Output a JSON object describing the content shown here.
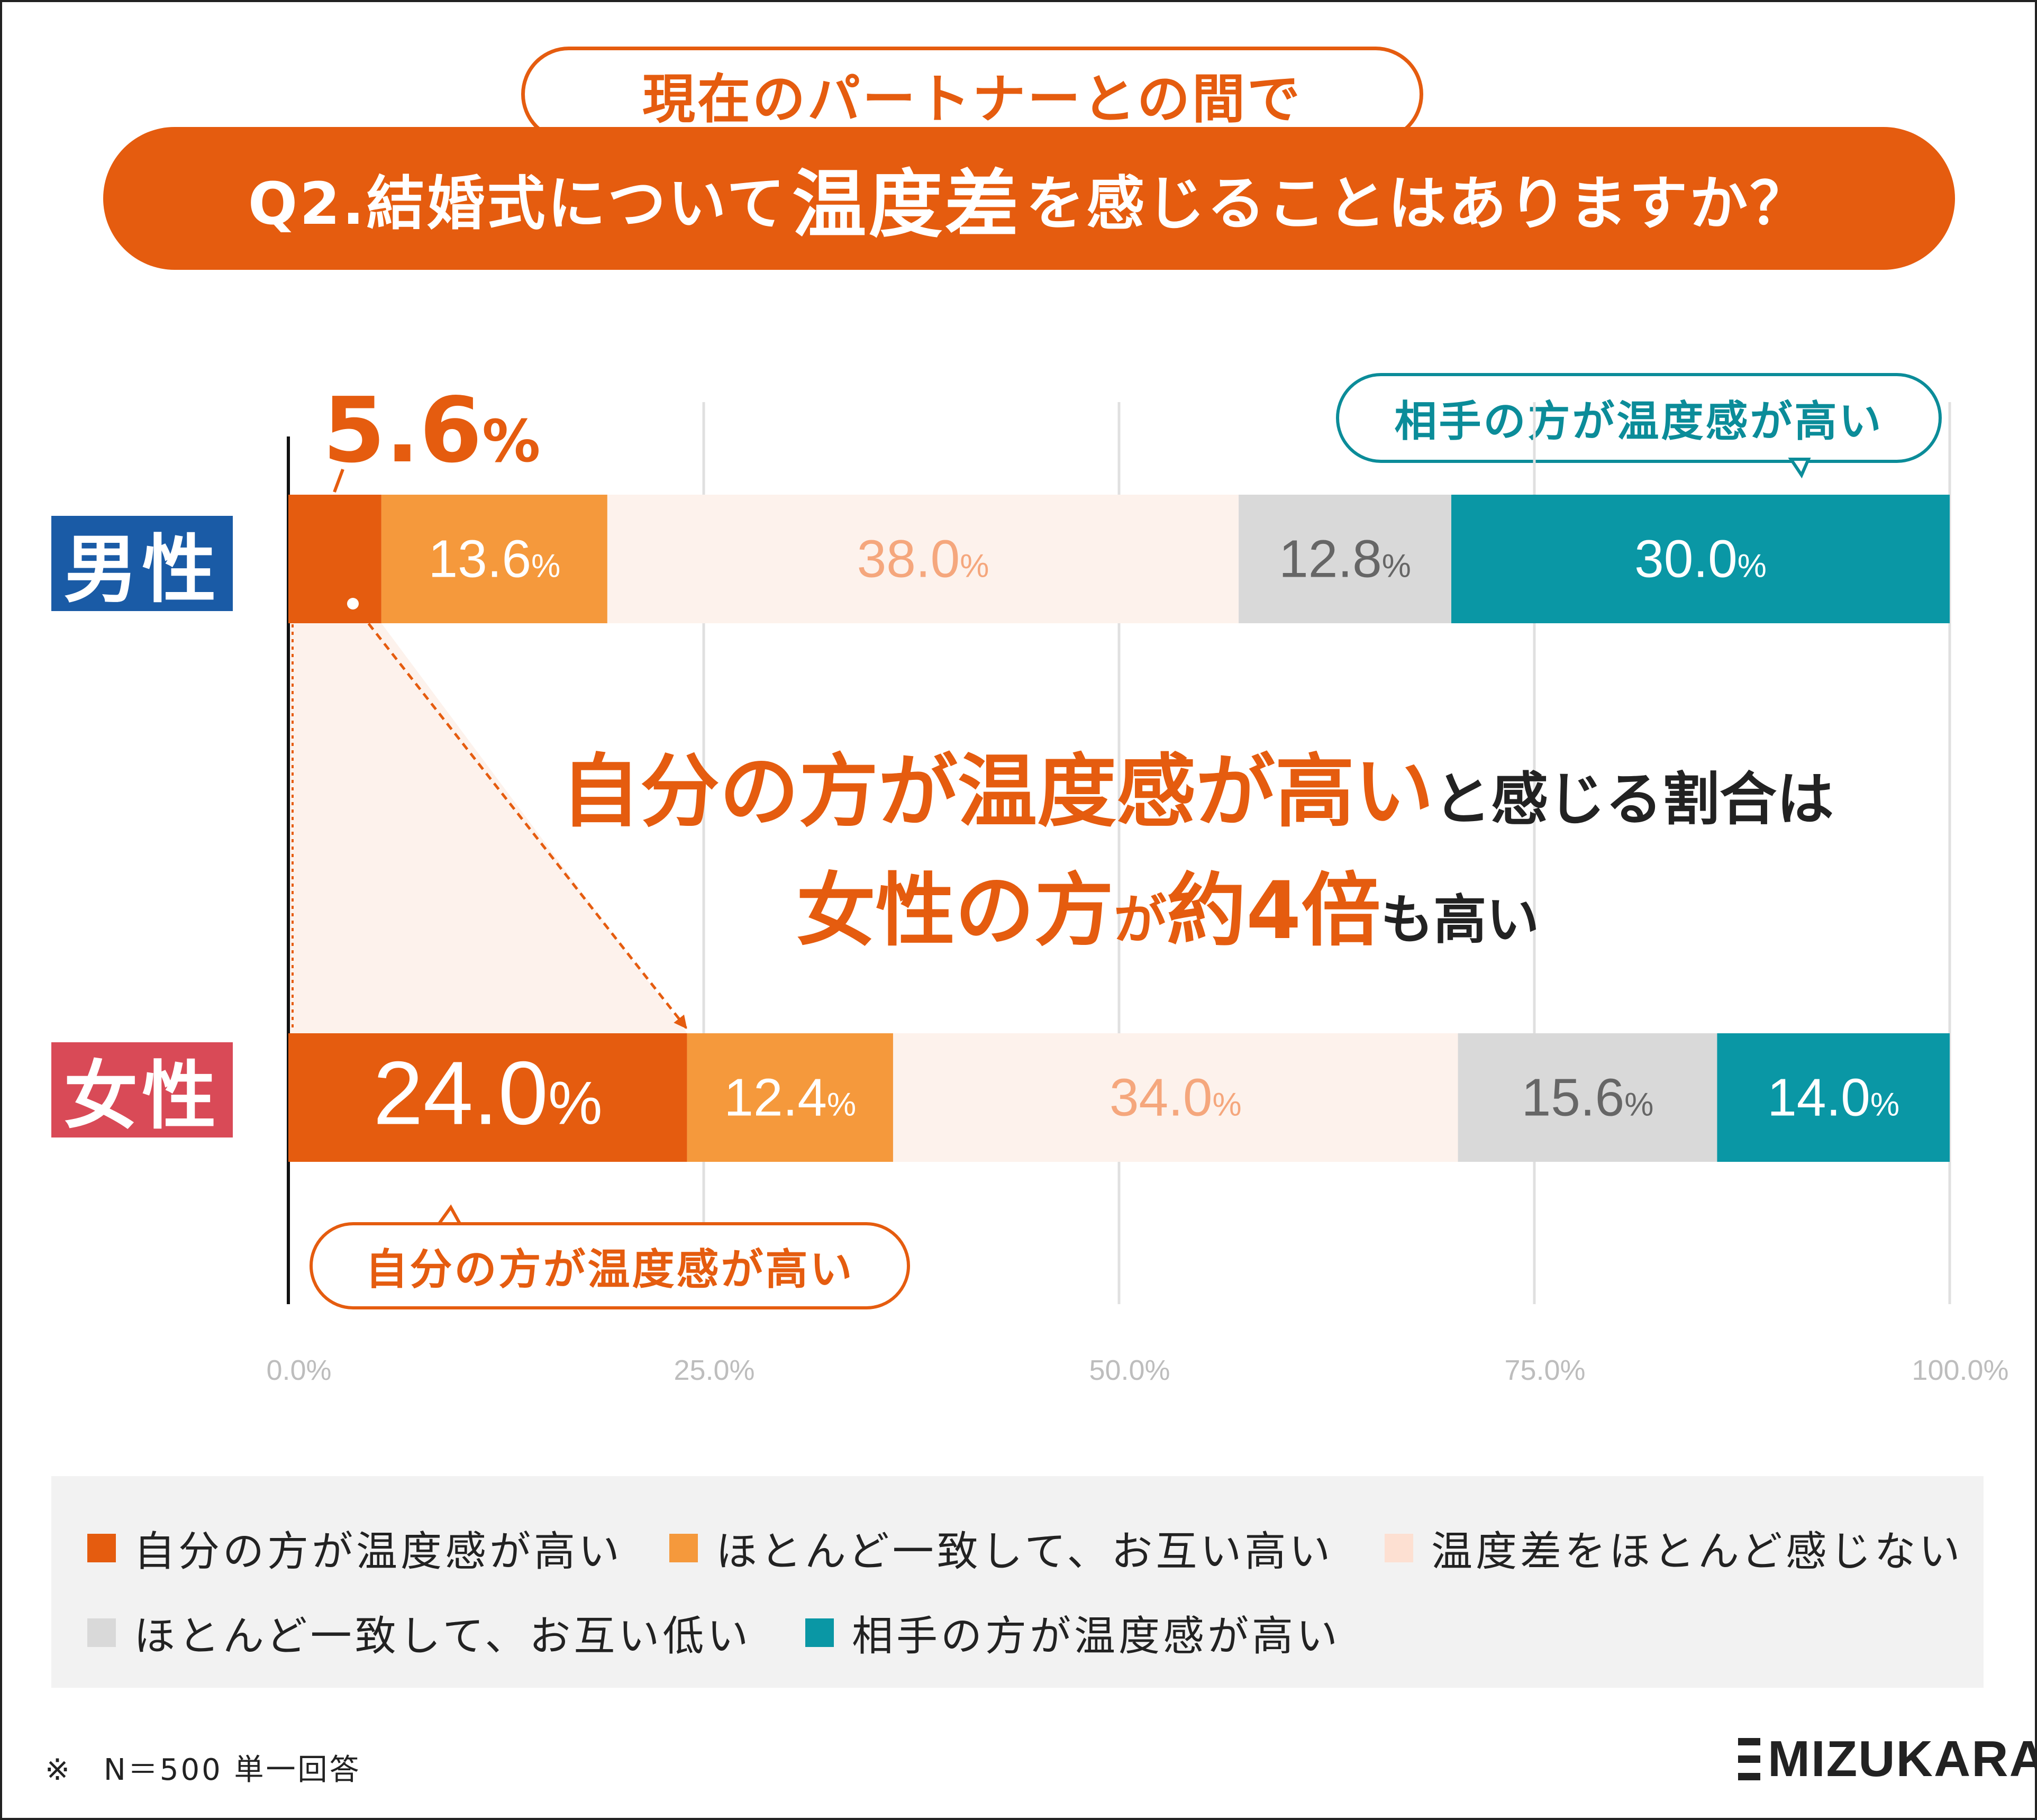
{
  "header": {
    "subtitle": "現在のパートナーとの間で",
    "question_prefix": "Q2.結婚式について",
    "question_emphasis": "温度差",
    "question_suffix": "を感じることはありますか？"
  },
  "callouts": {
    "partner_higher": "相手の方が温度感が高い",
    "self_higher": "自分の方が温度感が高い"
  },
  "gender_labels": {
    "male": "男性",
    "female": "女性"
  },
  "highlight_label": {
    "value": "5.6",
    "unit": "%"
  },
  "headline": {
    "line1_emphasis": "自分の方が温度感が高い",
    "line1_rest": "と感じる割合は",
    "line2_part1": "女性の方",
    "line2_part2": "が",
    "line2_part3": "約4倍",
    "line2_part4": "も高い"
  },
  "chart_data": {
    "type": "bar",
    "orientation": "horizontal",
    "stacked": true,
    "categories": [
      "男性",
      "女性"
    ],
    "xlim": [
      0,
      100
    ],
    "x_ticks": [
      "0.0%",
      "25.0%",
      "50.0%",
      "75.0%",
      "100.0%"
    ],
    "grid": true,
    "legend_position": "bottom",
    "series": [
      {
        "name": "自分の方が温度感が高い",
        "values": [
          5.6,
          24.0
        ],
        "color": "#e55c0f",
        "text_color": "#ffffff"
      },
      {
        "name": "ほとんど一致して、お互い高い",
        "values": [
          13.6,
          12.4
        ],
        "color": "#f5993c",
        "text_color": "#ffffff"
      },
      {
        "name": "温度差をほとんど感じない",
        "values": [
          38.0,
          34.0
        ],
        "color": "#fdf2ec",
        "text_color": "#f5a77d"
      },
      {
        "name": "ほとんど一致して、お互い低い",
        "values": [
          12.8,
          15.6
        ],
        "color": "#d9d9d9",
        "text_color": "#666666"
      },
      {
        "name": "相手の方が温度感が高い",
        "values": [
          30.0,
          14.0
        ],
        "color": "#0a97a5",
        "text_color": "#ffffff"
      }
    ],
    "data_labels": [
      [
        null,
        "13.6",
        "38.0",
        "12.8",
        "30.0"
      ],
      [
        "24.0",
        "12.4",
        "34.0",
        "15.6",
        "14.0"
      ]
    ],
    "label_unit": "%"
  },
  "footer": {
    "note": "※　N＝500 単一回答",
    "logo": "MIZUKARA"
  }
}
